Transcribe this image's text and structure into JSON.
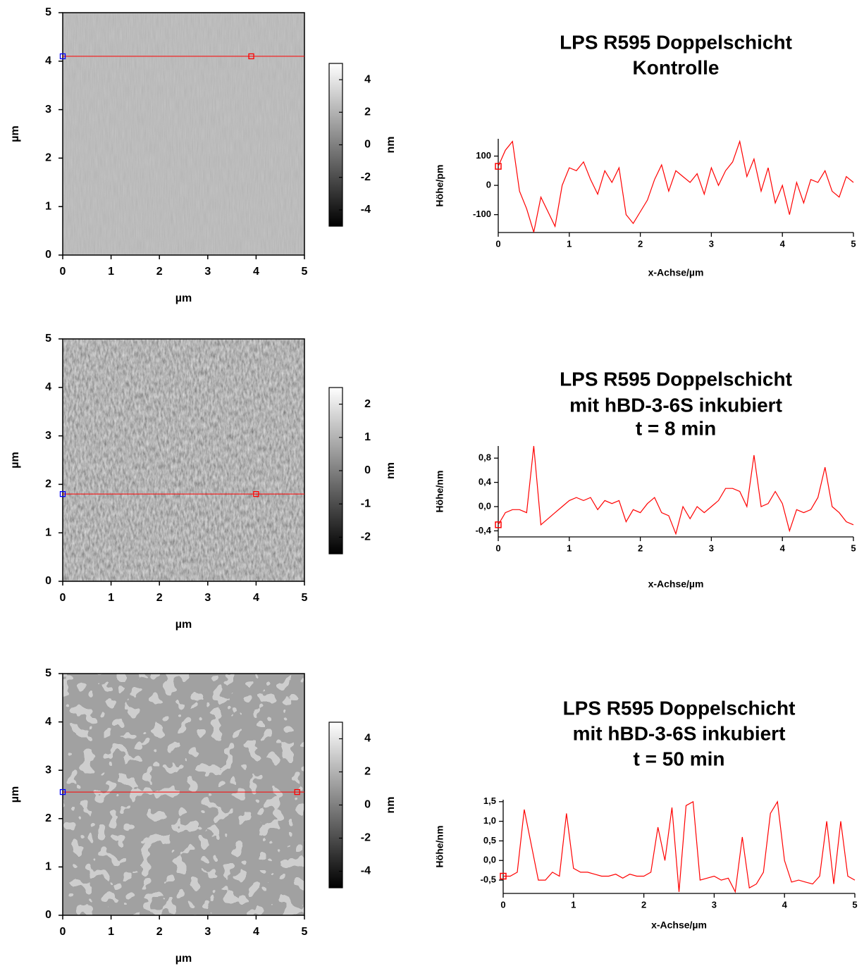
{
  "chart_data": [
    {
      "type": "image",
      "xlabel": "µm",
      "ylabel": "µm",
      "xlim": [
        0,
        5
      ],
      "ylim": [
        0,
        5
      ],
      "xticks": [
        0,
        1,
        2,
        3,
        4,
        5
      ],
      "yticks": [
        0,
        1,
        2,
        3,
        4,
        5
      ],
      "colorbar": {
        "label": "nm",
        "clim": [
          -5,
          5
        ],
        "ticks": [
          -4,
          -2,
          0,
          2,
          4
        ]
      },
      "profile": {
        "y": 4.1,
        "x": [
          0,
          3.9
        ],
        "color": "#ff0000",
        "marker_colors": [
          "#0000ff",
          "#ff0000"
        ]
      }
    },
    {
      "type": "line",
      "title": [
        "LPS R595 Doppelschicht",
        "Kontrolle"
      ],
      "xlabel": "x-Achse/µm",
      "ylabel": "Höhe/pm",
      "color": "#ff0000",
      "xlim": [
        0,
        5
      ],
      "ylim": [
        -161,
        159
      ],
      "xticks": [
        0,
        1,
        2,
        3,
        4,
        5
      ],
      "yticks": [
        -100,
        0,
        100
      ],
      "x": [
        0,
        0.1,
        0.2,
        0.3,
        0.4,
        0.5,
        0.6,
        0.7,
        0.8,
        0.9,
        1,
        1.1,
        1.2,
        1.3,
        1.4,
        1.5,
        1.6,
        1.7,
        1.8,
        1.9,
        2,
        2.1,
        2.2,
        2.3,
        2.4,
        2.5,
        2.6,
        2.7,
        2.8,
        2.9,
        3,
        3.1,
        3.2,
        3.3,
        3.4,
        3.5,
        3.6,
        3.7,
        3.8,
        3.9,
        4,
        4.1,
        4.2,
        4.3,
        4.4,
        4.5,
        4.6,
        4.7,
        4.8,
        4.9,
        5
      ],
      "values": [
        65,
        120,
        150,
        -20,
        -80,
        -160,
        -40,
        -90,
        -140,
        0,
        60,
        50,
        80,
        20,
        -30,
        50,
        10,
        60,
        -100,
        -130,
        -90,
        -50,
        20,
        70,
        -20,
        50,
        30,
        10,
        40,
        -30,
        60,
        0,
        50,
        80,
        150,
        30,
        90,
        -20,
        60,
        -60,
        0,
        -100,
        10,
        -60,
        20,
        10,
        50,
        -20,
        -40,
        30,
        10
      ]
    },
    {
      "type": "image",
      "xlabel": "µm",
      "ylabel": "µm",
      "xlim": [
        0,
        5
      ],
      "ylim": [
        0,
        5
      ],
      "xticks": [
        0,
        1,
        2,
        3,
        4,
        5
      ],
      "yticks": [
        0,
        1,
        2,
        3,
        4,
        5
      ],
      "colorbar": {
        "label": "nm",
        "clim": [
          -2.5,
          2.5
        ],
        "ticks": [
          -2,
          -1,
          0,
          1,
          2
        ]
      },
      "profile": {
        "y": 1.8,
        "x": [
          0,
          4
        ],
        "color": "#ff0000",
        "marker_colors": [
          "#0000ff",
          "#ff0000"
        ]
      }
    },
    {
      "type": "line",
      "title": [
        "LPS R595 Doppelschicht",
        "mit hBD-3-6S inkubiert",
        "t = 8 min"
      ],
      "xlabel": "x-Achse/µm",
      "ylabel": "Höhe/nm",
      "color": "#ff0000",
      "xlim": [
        0,
        5
      ],
      "ylim": [
        -0.5,
        1.0
      ],
      "xticks": [
        0,
        1,
        2,
        3,
        4,
        5
      ],
      "yticks": [
        {
          "value": -0.4,
          "label": "-0,4"
        },
        {
          "value": 0,
          "label": "0,0"
        },
        {
          "value": 0.4,
          "label": "0,4"
        },
        {
          "value": 0.8,
          "label": "0,8"
        }
      ],
      "x": [
        0,
        0.1,
        0.2,
        0.3,
        0.4,
        0.5,
        0.6,
        0.7,
        0.8,
        0.9,
        1,
        1.1,
        1.2,
        1.3,
        1.4,
        1.5,
        1.6,
        1.7,
        1.8,
        1.9,
        2,
        2.1,
        2.2,
        2.3,
        2.4,
        2.5,
        2.6,
        2.7,
        2.8,
        2.9,
        3,
        3.1,
        3.2,
        3.3,
        3.4,
        3.5,
        3.6,
        3.7,
        3.8,
        3.9,
        4,
        4.1,
        4.2,
        4.3,
        4.4,
        4.5,
        4.6,
        4.7,
        4.8,
        4.9,
        5
      ],
      "values": [
        -0.3,
        -0.1,
        -0.05,
        -0.05,
        -0.1,
        1.0,
        -0.3,
        -0.2,
        -0.1,
        0,
        0.1,
        0.15,
        0.1,
        0.15,
        -0.05,
        0.1,
        0.05,
        0.1,
        -0.25,
        -0.05,
        -0.1,
        0.05,
        0.15,
        -0.1,
        -0.15,
        -0.45,
        0,
        -0.2,
        0,
        -0.1,
        0,
        0.1,
        0.3,
        0.3,
        0.25,
        0,
        0.85,
        0,
        0.05,
        0.25,
        0.05,
        -0.4,
        -0.05,
        -0.1,
        -0.05,
        0.15,
        0.65,
        0,
        -0.1,
        -0.25,
        -0.3
      ]
    },
    {
      "type": "image",
      "xlabel": "µm",
      "ylabel": "µm",
      "xlim": [
        0,
        5
      ],
      "ylim": [
        0,
        5
      ],
      "xticks": [
        0,
        1,
        2,
        3,
        4,
        5
      ],
      "yticks": [
        0,
        1,
        2,
        3,
        4,
        5
      ],
      "colorbar": {
        "label": "nm",
        "clim": [
          -5,
          5
        ],
        "ticks": [
          -4,
          -2,
          0,
          2,
          4
        ]
      },
      "profile": {
        "y": 2.55,
        "x": [
          0,
          4.85
        ],
        "color": "#ff0000",
        "marker_colors": [
          "#0000ff",
          "#ff0000"
        ]
      }
    },
    {
      "type": "line",
      "title": [
        "LPS R595 Doppelschicht",
        "mit hBD-3-6S inkubiert",
        "t = 50 min"
      ],
      "xlabel": "x-Achse/µm",
      "ylabel": "Höhe/nm",
      "color": "#ff0000",
      "xlim": [
        0,
        5
      ],
      "ylim": [
        -0.84,
        1.55
      ],
      "xticks": [
        0,
        1,
        2,
        3,
        4,
        5
      ],
      "yticks": [
        {
          "value": -0.5,
          "label": "-0,5"
        },
        {
          "value": 0,
          "label": "0,0"
        },
        {
          "value": 0.5,
          "label": "0,5"
        },
        {
          "value": 1,
          "label": "1,0"
        },
        {
          "value": 1.5,
          "label": "1,5"
        }
      ],
      "x": [
        0,
        0.1,
        0.2,
        0.3,
        0.4,
        0.5,
        0.6,
        0.7,
        0.8,
        0.9,
        1,
        1.1,
        1.2,
        1.3,
        1.4,
        1.5,
        1.6,
        1.7,
        1.8,
        1.9,
        2,
        2.1,
        2.2,
        2.3,
        2.4,
        2.5,
        2.6,
        2.7,
        2.8,
        2.9,
        3,
        3.1,
        3.2,
        3.3,
        3.4,
        3.5,
        3.6,
        3.7,
        3.8,
        3.9,
        4,
        4.1,
        4.2,
        4.3,
        4.4,
        4.5,
        4.6,
        4.7,
        4.8,
        4.9,
        5
      ],
      "values": [
        -0.4,
        -0.4,
        -0.3,
        1.3,
        0.4,
        -0.5,
        -0.5,
        -0.3,
        -0.4,
        1.2,
        -0.2,
        -0.3,
        -0.3,
        -0.35,
        -0.4,
        -0.4,
        -0.35,
        -0.45,
        -0.35,
        -0.4,
        -0.4,
        -0.3,
        0.85,
        0,
        1.35,
        -0.8,
        1.4,
        1.5,
        -0.5,
        -0.45,
        -0.4,
        -0.5,
        -0.45,
        -0.8,
        0.6,
        -0.7,
        -0.6,
        -0.3,
        1.2,
        1.5,
        0,
        -0.55,
        -0.5,
        -0.55,
        -0.6,
        -0.4,
        1,
        -0.6,
        1,
        -0.4,
        -0.5
      ]
    }
  ]
}
